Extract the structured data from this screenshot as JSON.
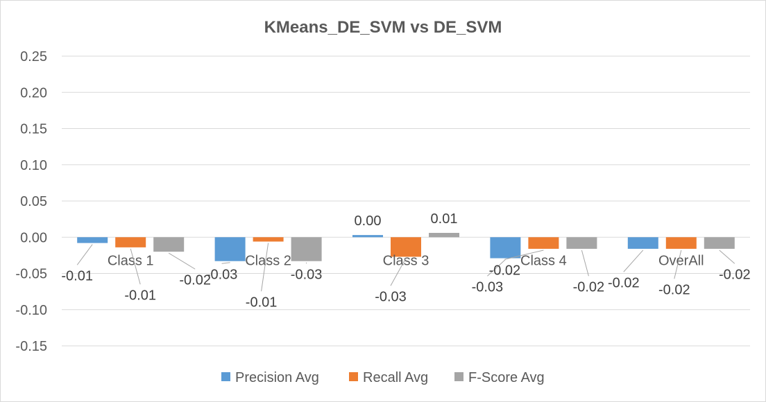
{
  "chart_data": {
    "type": "bar",
    "title": "KMeans_DE_SVM vs DE_SVM",
    "categories": [
      "Class 1",
      "Class 2",
      "Class 3",
      "Class 4",
      "OverAll"
    ],
    "series": [
      {
        "name": "Precision Avg",
        "color": "#5b9bd5",
        "values": [
          -0.008,
          -0.033,
          0.003,
          -0.029,
          -0.016
        ],
        "labels": [
          "-0.01",
          "-0.03",
          "0.00",
          "-0.03",
          "-0.02"
        ]
      },
      {
        "name": "Recall Avg",
        "color": "#ed7d31",
        "values": [
          -0.014,
          -0.006,
          -0.027,
          -0.016,
          -0.016
        ],
        "labels": [
          "-0.01",
          "-0.01",
          "-0.03",
          "-0.02",
          "-0.02"
        ]
      },
      {
        "name": "F-Score Avg",
        "color": "#a5a5a5",
        "values": [
          -0.02,
          -0.033,
          0.006,
          -0.016,
          -0.016
        ],
        "labels": [
          "-0.02",
          "-0.03",
          "0.01",
          "-0.02",
          "-0.02"
        ]
      }
    ],
    "yticks": [
      "0.25",
      "0.20",
      "0.15",
      "0.10",
      "0.05",
      "0.00",
      "-0.05",
      "-0.10",
      "-0.15"
    ],
    "ylim": [
      -0.15,
      0.25
    ],
    "xlabel": "",
    "ylabel": "",
    "grid": true,
    "legend_position": "bottom"
  }
}
